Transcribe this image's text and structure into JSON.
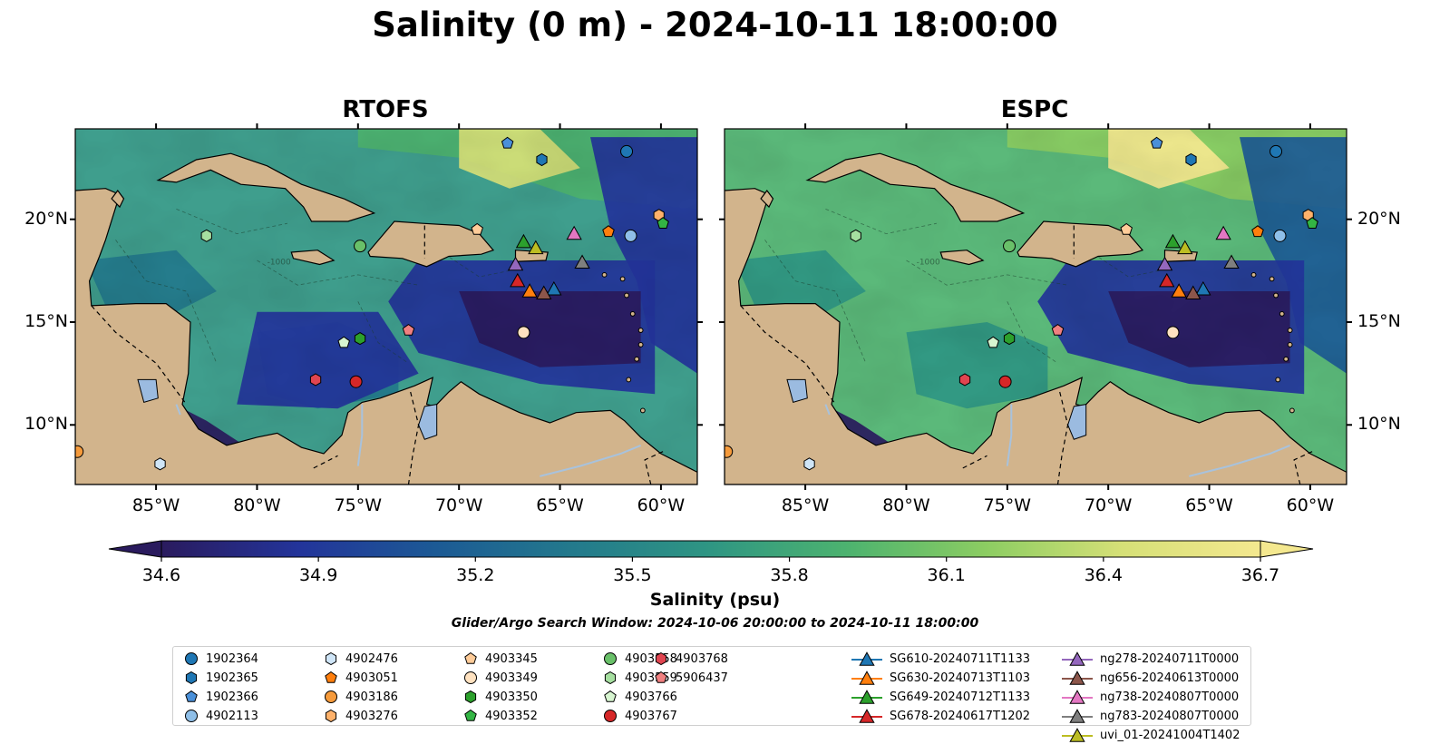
{
  "title": "Salinity (0 m) - 2024-10-11 18:00:00",
  "panels": [
    {
      "title": "RTOFS"
    },
    {
      "title": "ESPC"
    }
  ],
  "axes": {
    "x_ticks": [
      "85°W",
      "80°W",
      "75°W",
      "70°W",
      "65°W",
      "60°W"
    ],
    "y_ticks": [
      "20°N",
      "15°N",
      "10°N"
    ]
  },
  "contour_label": "-1000",
  "colorbar": {
    "label": "Salinity (psu)",
    "ticks": [
      "34.6",
      "34.9",
      "35.2",
      "35.5",
      "35.8",
      "36.1",
      "36.4",
      "36.7"
    ],
    "range": [
      34.6,
      36.7
    ],
    "colormap": [
      "#2a1b5e",
      "#23349a",
      "#1c5a95",
      "#237a8c",
      "#2f9683",
      "#4db36f",
      "#8ccd62",
      "#d6e077",
      "#f4e88f"
    ]
  },
  "window_note": "Glider/Argo Search Window: 2024-10-06 20:00:00 to 2024-10-11 18:00:00",
  "colors": {
    "land": "#d2b48c",
    "lake": "#9bbbe0",
    "river": "#a8c2dc"
  },
  "legend": [
    {
      "label": "1902364",
      "marker": "circle",
      "color": "#1f77b4"
    },
    {
      "label": "1902365",
      "marker": "hexagon",
      "color": "#1f77b4"
    },
    {
      "label": "1902366",
      "marker": "pentagon",
      "color": "#4a90d9"
    },
    {
      "label": "4902113",
      "marker": "circle",
      "color": "#8fbfe8"
    },
    {
      "label": "4902476",
      "marker": "hexagon",
      "color": "#cfe5f7"
    },
    {
      "label": "4903051",
      "marker": "pentagon",
      "color": "#ff7f0e"
    },
    {
      "label": "4903186",
      "marker": "circle",
      "color": "#f59a3b"
    },
    {
      "label": "4903276",
      "marker": "hexagon",
      "color": "#ffb26b"
    },
    {
      "label": "4903345",
      "marker": "pentagon",
      "color": "#ffcc99"
    },
    {
      "label": "4903349",
      "marker": "circle",
      "color": "#ffe2c0"
    },
    {
      "label": "4903350",
      "marker": "hexagon",
      "color": "#2ca02c"
    },
    {
      "label": "4903352",
      "marker": "pentagon",
      "color": "#33b544"
    },
    {
      "label": "4903558",
      "marker": "circle",
      "color": "#69c069"
    },
    {
      "label": "4903559",
      "marker": "hexagon",
      "color": "#a6dfa0"
    },
    {
      "label": "4903766",
      "marker": "pentagon",
      "color": "#d7f5d0"
    },
    {
      "label": "4903767",
      "marker": "circle",
      "color": "#d62728"
    },
    {
      "label": "4903768",
      "marker": "hexagon",
      "color": "#e04550"
    },
    {
      "label": "5906437",
      "marker": "pentagon",
      "color": "#f08080"
    },
    {
      "label": "SG610-20240711T1133",
      "marker": "triangle-line",
      "color": "#1f77b4"
    },
    {
      "label": "SG630-20240713T1103",
      "marker": "triangle-line",
      "color": "#ff7f0e"
    },
    {
      "label": "SG649-20240712T1133",
      "marker": "triangle-line",
      "color": "#2ca02c"
    },
    {
      "label": "SG678-20240617T1202",
      "marker": "triangle-line",
      "color": "#d62728"
    },
    {
      "label": "ng278-20240711T0000",
      "marker": "triangle-line",
      "color": "#9467bd"
    },
    {
      "label": "ng656-20240613T0000",
      "marker": "triangle-line",
      "color": "#8c564b"
    },
    {
      "label": "ng738-20240807T0000",
      "marker": "triangle-line",
      "color": "#e377c2"
    },
    {
      "label": "ng783-20240807T0000",
      "marker": "triangle-line",
      "color": "#7f7f7f"
    },
    {
      "label": "uvi_01-20241004T1402",
      "marker": "triangle-line",
      "color": "#bcbd22"
    }
  ],
  "observations": [
    {
      "id": "1902364",
      "lon": -61.7,
      "lat": 23.3
    },
    {
      "id": "1902365",
      "lon": -65.9,
      "lat": 22.9
    },
    {
      "id": "1902366",
      "lon": -67.6,
      "lat": 23.7
    },
    {
      "id": "4902113",
      "lon": -61.5,
      "lat": 19.2
    },
    {
      "id": "4902476",
      "lon": -84.8,
      "lat": 8.1
    },
    {
      "id": "4903051",
      "lon": -62.6,
      "lat": 19.4
    },
    {
      "id": "4903186",
      "lon": -88.9,
      "lat": 8.7
    },
    {
      "id": "4903276",
      "lon": -60.1,
      "lat": 20.2
    },
    {
      "id": "4903345",
      "lon": -69.1,
      "lat": 19.5
    },
    {
      "id": "4903349",
      "lon": -66.8,
      "lat": 14.5
    },
    {
      "id": "4903350",
      "lon": -74.9,
      "lat": 14.2
    },
    {
      "id": "4903352",
      "lon": -59.9,
      "lat": 19.8
    },
    {
      "id": "4903558",
      "lon": -74.9,
      "lat": 18.7
    },
    {
      "id": "4903559",
      "lon": -82.5,
      "lat": 19.2
    },
    {
      "id": "4903766",
      "lon": -75.7,
      "lat": 14.0
    },
    {
      "id": "4903767",
      "lon": -75.1,
      "lat": 12.1
    },
    {
      "id": "4903768",
      "lon": -77.1,
      "lat": 12.2
    },
    {
      "id": "5906437",
      "lon": -72.5,
      "lat": 14.6
    },
    {
      "id": "SG610-20240711T1133",
      "lon": -65.3,
      "lat": 16.6
    },
    {
      "id": "SG630-20240713T1103",
      "lon": -66.5,
      "lat": 16.5
    },
    {
      "id": "SG649-20240712T1133",
      "lon": -66.8,
      "lat": 18.9
    },
    {
      "id": "SG678-20240617T1202",
      "lon": -67.1,
      "lat": 17.0
    },
    {
      "id": "ng278-20240711T0000",
      "lon": -67.2,
      "lat": 17.8
    },
    {
      "id": "ng656-20240613T0000",
      "lon": -65.8,
      "lat": 16.4
    },
    {
      "id": "ng738-20240807T0000",
      "lon": -64.3,
      "lat": 19.3
    },
    {
      "id": "ng783-20240807T0000",
      "lon": -63.9,
      "lat": 17.9
    },
    {
      "id": "uvi_01-20241004T1402",
      "lon": -66.2,
      "lat": 18.6
    }
  ]
}
